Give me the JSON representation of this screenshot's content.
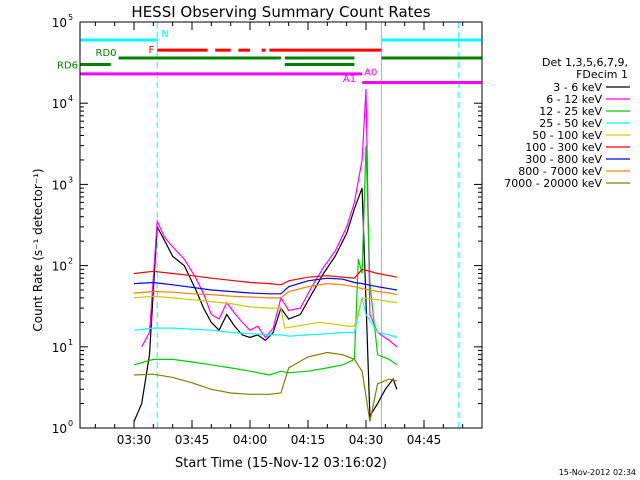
{
  "chart_data": {
    "type": "line",
    "title": "HESSI Observing Summary Count Rates",
    "xlabel": "Start Time (15-Nov-12 03:16:02)",
    "ylabel": "Count Rate (s⁻¹ detector⁻¹)",
    "yscale": "log",
    "xlim": [
      "03:16:02",
      "05:00:00"
    ],
    "ylim": [
      1,
      100000
    ],
    "x_ticks": [
      "03:30",
      "03:45",
      "04:00",
      "04:15",
      "04:30",
      "04:45"
    ],
    "y_ticks": [
      {
        "value": 1,
        "label": "10",
        "exp": "0"
      },
      {
        "value": 10,
        "label": "10",
        "exp": "1"
      },
      {
        "value": 100,
        "label": "10",
        "exp": "2"
      },
      {
        "value": 1000,
        "label": "10",
        "exp": "3"
      },
      {
        "value": 10000,
        "label": "10",
        "exp": "4"
      },
      {
        "value": 100000,
        "label": "10",
        "exp": "5"
      }
    ],
    "legend": {
      "placement": "right",
      "header_lines": [
        "Det 1,3,5,6,7,9,",
        "FDecim 1"
      ]
    },
    "series": [
      {
        "name": "3 - 6 keV",
        "color": "#000000",
        "points": [
          [
            "03:30",
            1.2
          ],
          [
            "03:32",
            2
          ],
          [
            "03:34",
            8
          ],
          [
            "03:36",
            300
          ],
          [
            "03:38",
            200
          ],
          [
            "03:40",
            130
          ],
          [
            "03:43",
            100
          ],
          [
            "03:46",
            50
          ],
          [
            "03:48",
            30
          ],
          [
            "03:50",
            20
          ],
          [
            "03:52",
            16
          ],
          [
            "03:54",
            25
          ],
          [
            "03:56",
            18
          ],
          [
            "03:58",
            14
          ],
          [
            "04:00",
            13
          ],
          [
            "04:02",
            14
          ],
          [
            "04:04",
            12
          ],
          [
            "04:06",
            15
          ],
          [
            "04:08",
            30
          ],
          [
            "04:10",
            22
          ],
          [
            "04:13",
            25
          ],
          [
            "04:16",
            45
          ],
          [
            "04:19",
            80
          ],
          [
            "04:22",
            130
          ],
          [
            "04:25",
            250
          ],
          [
            "04:27",
            500
          ],
          [
            "04:29",
            900
          ],
          [
            "04:31",
            1.4
          ],
          [
            "04:33",
            2
          ],
          [
            "04:35",
            3
          ],
          [
            "04:37",
            4
          ],
          [
            "04:38",
            3
          ]
        ]
      },
      {
        "name": "6 - 12 keV",
        "color": "#ff00ff",
        "points": [
          [
            "03:32",
            10
          ],
          [
            "03:34",
            15
          ],
          [
            "03:36",
            350
          ],
          [
            "03:38",
            220
          ],
          [
            "03:40",
            170
          ],
          [
            "03:43",
            120
          ],
          [
            "03:46",
            70
          ],
          [
            "03:48",
            45
          ],
          [
            "03:50",
            25
          ],
          [
            "03:52",
            22
          ],
          [
            "03:54",
            35
          ],
          [
            "03:56",
            26
          ],
          [
            "03:58",
            20
          ],
          [
            "04:00",
            16
          ],
          [
            "04:02",
            18
          ],
          [
            "04:04",
            13
          ],
          [
            "04:06",
            17
          ],
          [
            "04:08",
            40
          ],
          [
            "04:10",
            28
          ],
          [
            "04:13",
            30
          ],
          [
            "04:16",
            55
          ],
          [
            "04:19",
            95
          ],
          [
            "04:22",
            150
          ],
          [
            "04:25",
            300
          ],
          [
            "04:27",
            600
          ],
          [
            "04:29",
            2000
          ],
          [
            "04:30",
            15000
          ],
          [
            "04:31",
            25
          ],
          [
            "04:33",
            15
          ],
          [
            "04:36",
            12
          ],
          [
            "04:38",
            10
          ]
        ]
      },
      {
        "name": "12 - 25 keV",
        "color": "#00cc00",
        "points": [
          [
            "03:30",
            6
          ],
          [
            "03:35",
            7
          ],
          [
            "03:40",
            7
          ],
          [
            "03:45",
            6.5
          ],
          [
            "03:50",
            6
          ],
          [
            "03:55",
            5.5
          ],
          [
            "04:00",
            5
          ],
          [
            "04:05",
            4.5
          ],
          [
            "04:08",
            5
          ],
          [
            "04:10",
            4.8
          ],
          [
            "04:15",
            5
          ],
          [
            "04:20",
            5.5
          ],
          [
            "04:24",
            6
          ],
          [
            "04:27",
            7
          ],
          [
            "04:28",
            120
          ],
          [
            "04:29",
            80
          ],
          [
            "04:30",
            3000
          ],
          [
            "04:31",
            60
          ],
          [
            "04:33",
            8
          ],
          [
            "04:36",
            7
          ],
          [
            "04:38",
            6
          ]
        ]
      },
      {
        "name": "25 - 50 keV",
        "color": "#00ffff",
        "points": [
          [
            "03:30",
            16
          ],
          [
            "03:35",
            17
          ],
          [
            "03:40",
            17
          ],
          [
            "03:45",
            16.5
          ],
          [
            "03:50",
            16
          ],
          [
            "03:55",
            15
          ],
          [
            "04:00",
            14.5
          ],
          [
            "04:05",
            14
          ],
          [
            "04:08",
            14
          ],
          [
            "04:10",
            13.5
          ],
          [
            "04:15",
            14
          ],
          [
            "04:20",
            14.5
          ],
          [
            "04:24",
            15
          ],
          [
            "04:27",
            15
          ],
          [
            "04:29",
            40
          ],
          [
            "04:30",
            25
          ],
          [
            "04:33",
            15
          ],
          [
            "04:36",
            14
          ],
          [
            "04:38",
            13
          ]
        ]
      },
      {
        "name": "50 - 100 keV",
        "color": "#cccc00",
        "points": [
          [
            "03:30",
            40
          ],
          [
            "03:35",
            42
          ],
          [
            "03:40",
            40
          ],
          [
            "03:45",
            38
          ],
          [
            "03:50",
            36
          ],
          [
            "03:55",
            34
          ],
          [
            "04:00",
            31
          ],
          [
            "04:05",
            30
          ],
          [
            "04:08",
            30
          ],
          [
            "04:09",
            17
          ],
          [
            "04:12",
            18
          ],
          [
            "04:15",
            19
          ],
          [
            "04:18",
            20
          ],
          [
            "04:22",
            19
          ],
          [
            "04:25",
            18
          ],
          [
            "04:27",
            18
          ],
          [
            "04:29",
            40
          ],
          [
            "04:33",
            38
          ],
          [
            "04:36",
            36
          ],
          [
            "04:38",
            35
          ]
        ]
      },
      {
        "name": "100 - 300 keV",
        "color": "#ff0000",
        "points": [
          [
            "03:30",
            80
          ],
          [
            "03:35",
            85
          ],
          [
            "03:40",
            80
          ],
          [
            "03:45",
            75
          ],
          [
            "03:50",
            70
          ],
          [
            "03:55",
            66
          ],
          [
            "04:00",
            62
          ],
          [
            "04:05",
            60
          ],
          [
            "04:08",
            58
          ],
          [
            "04:10",
            65
          ],
          [
            "04:15",
            72
          ],
          [
            "04:20",
            75
          ],
          [
            "04:24",
            72
          ],
          [
            "04:27",
            70
          ],
          [
            "04:29",
            90
          ],
          [
            "04:33",
            80
          ],
          [
            "04:36",
            75
          ],
          [
            "04:38",
            72
          ]
        ]
      },
      {
        "name": "300 - 800 keV",
        "color": "#0000ff",
        "points": [
          [
            "03:30",
            60
          ],
          [
            "03:35",
            62
          ],
          [
            "03:40",
            58
          ],
          [
            "03:45",
            54
          ],
          [
            "03:50",
            50
          ],
          [
            "03:55",
            48
          ],
          [
            "04:00",
            46
          ],
          [
            "04:05",
            45
          ],
          [
            "04:08",
            45
          ],
          [
            "04:10",
            55
          ],
          [
            "04:15",
            65
          ],
          [
            "04:20",
            70
          ],
          [
            "04:24",
            68
          ],
          [
            "04:27",
            62
          ],
          [
            "04:29",
            60
          ],
          [
            "04:33",
            55
          ],
          [
            "04:36",
            52
          ],
          [
            "04:38",
            50
          ]
        ]
      },
      {
        "name": "800 - 7000 keV",
        "color": "#ff8000",
        "points": [
          [
            "03:30",
            46
          ],
          [
            "03:35",
            48
          ],
          [
            "03:40",
            47
          ],
          [
            "03:45",
            45
          ],
          [
            "03:50",
            44
          ],
          [
            "03:55",
            42
          ],
          [
            "04:00",
            41
          ],
          [
            "04:05",
            40
          ],
          [
            "04:08",
            40
          ],
          [
            "04:10",
            48
          ],
          [
            "04:15",
            55
          ],
          [
            "04:20",
            60
          ],
          [
            "04:24",
            58
          ],
          [
            "04:27",
            55
          ],
          [
            "04:29",
            52
          ],
          [
            "04:33",
            48
          ],
          [
            "04:36",
            46
          ],
          [
            "04:38",
            44
          ]
        ]
      },
      {
        "name": "7000 - 20000 keV",
        "color": "#808000",
        "points": [
          [
            "03:30",
            4.5
          ],
          [
            "03:35",
            4.6
          ],
          [
            "03:40",
            4.2
          ],
          [
            "03:45",
            3.6
          ],
          [
            "03:50",
            3
          ],
          [
            "03:55",
            2.7
          ],
          [
            "04:00",
            2.6
          ],
          [
            "04:05",
            2.6
          ],
          [
            "04:08",
            2.7
          ],
          [
            "04:10",
            5.5
          ],
          [
            "04:15",
            7.5
          ],
          [
            "04:20",
            8.5
          ],
          [
            "04:24",
            8
          ],
          [
            "04:27",
            7
          ],
          [
            "04:29",
            5
          ],
          [
            "04:31",
            1.2
          ],
          [
            "04:33",
            3.5
          ],
          [
            "04:36",
            4
          ],
          [
            "04:38",
            3.8
          ]
        ]
      }
    ],
    "flag_bars": [
      {
        "label": "N",
        "color": "#00ffff",
        "dashed": false,
        "level": 60000,
        "segments": [
          [
            "03:16:02",
            "03:36"
          ],
          [
            "04:34",
            "05:00"
          ]
        ]
      },
      {
        "label": "F",
        "color": "#ff0000",
        "dashed": true,
        "level": 45000,
        "segments": [
          [
            "03:36",
            "03:49"
          ],
          [
            "03:51",
            "03:55"
          ],
          [
            "03:57",
            "04:00"
          ],
          [
            "04:03",
            "04:04"
          ],
          [
            "04:05",
            "04:34"
          ]
        ]
      },
      {
        "label": "RD0",
        "color": "#008000",
        "dashed": false,
        "level": 36000,
        "segments": [
          [
            "03:26",
            "04:08"
          ],
          [
            "04:09",
            "04:27"
          ],
          [
            "04:34",
            "05:00"
          ]
        ]
      },
      {
        "label": "RD6",
        "color": "#008000",
        "dashed": false,
        "level": 30000,
        "segments": [
          [
            "03:16:02",
            "03:24"
          ],
          [
            "04:09",
            "04:27"
          ]
        ]
      },
      {
        "label": "A1",
        "color": "#ff00ff",
        "dashed": false,
        "level": 23000,
        "segments": [
          [
            "03:16:02",
            "04:29"
          ]
        ]
      },
      {
        "label": "A0",
        "color": "#ff00ff",
        "dashed": false,
        "level": 18000,
        "segments": [
          [
            "04:29",
            "05:00"
          ]
        ]
      }
    ],
    "vertical_markers": [
      {
        "x": "03:36",
        "color": "#00ffff",
        "style": "dashed"
      },
      {
        "x": "04:34",
        "color": "#00ffff",
        "style": "solid"
      },
      {
        "x": "04:54",
        "color": "#00ffff",
        "style": "dashed"
      }
    ]
  },
  "footer": {
    "timestamp": "15-Nov-2012 02:34"
  }
}
